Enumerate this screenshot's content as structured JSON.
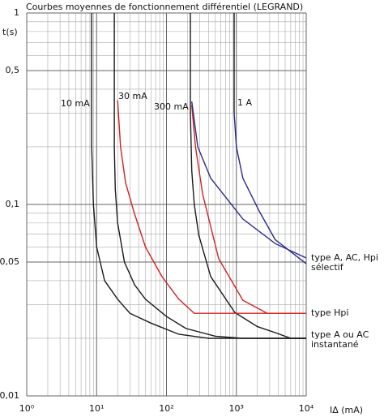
{
  "chart_data": {
    "type": "line",
    "title": "Courbes moyennes de fonctionnement différentiel (LEGRAND)",
    "y_label": "t(s)",
    "x_label": "IΔ (mA)",
    "log_x": true,
    "log_y": true,
    "grid": "minor",
    "xlim": [
      1,
      10000
    ],
    "ylim": [
      0.01,
      1
    ],
    "xticks": [
      {
        "value": 1,
        "label": "10⁰"
      },
      {
        "value": 10,
        "label": "10¹"
      },
      {
        "value": 100,
        "label": "10²"
      },
      {
        "value": 1000,
        "label": "10³"
      },
      {
        "value": 10000,
        "label": "10⁴"
      }
    ],
    "yticks": [
      {
        "value": 0.01,
        "label": "0,01"
      },
      {
        "value": 0.05,
        "label": "0,05"
      },
      {
        "value": 0.1,
        "label": "0,1"
      },
      {
        "value": 0.5,
        "label": "0,5"
      },
      {
        "value": 1,
        "label": "1"
      }
    ],
    "series": [
      {
        "name": "10 mA",
        "color": "#1a1a1a",
        "x": [
          8.5,
          8.5,
          9,
          10,
          13,
          20,
          30,
          60,
          150,
          400,
          10000
        ],
        "values": [
          1,
          0.2,
          0.1,
          0.06,
          0.04,
          0.032,
          0.027,
          0.024,
          0.021,
          0.02,
          0.02
        ]
      },
      {
        "name": "30 mA",
        "color": "#1a1a1a",
        "x": [
          17.9,
          17.9,
          18.5,
          20,
          25,
          35,
          50,
          100,
          190,
          500,
          1200,
          10000
        ],
        "values": [
          1,
          0.2,
          0.12,
          0.08,
          0.05,
          0.038,
          0.032,
          0.026,
          0.0225,
          0.0205,
          0.02,
          0.02
        ]
      },
      {
        "name": "300 mA",
        "color": "#1a1a1a",
        "x": [
          220,
          220,
          230,
          250,
          290,
          430,
          950,
          2000,
          3600,
          6000,
          10000
        ],
        "values": [
          1,
          0.3,
          0.15,
          0.1,
          0.069,
          0.042,
          0.0273,
          0.023,
          0.0214,
          0.02,
          0.02
        ]
      },
      {
        "name": "1 A",
        "color": "#1a1a1a",
        "x": [
          930,
          930
        ],
        "values": [
          1,
          0.3
        ]
      },
      {
        "color": "#d42020",
        "x": [
          20,
          22,
          26,
          34,
          50,
          86,
          150,
          250,
          10000
        ],
        "values": [
          0.35,
          0.2,
          0.13,
          0.092,
          0.06,
          0.042,
          0.032,
          0.027,
          0.027
        ]
      },
      {
        "color": "#d42020",
        "x": [
          230,
          260,
          330,
          560,
          1240,
          2770,
          10000
        ],
        "values": [
          0.33,
          0.2,
          0.113,
          0.052,
          0.0316,
          0.027,
          0.027
        ]
      },
      {
        "color": "#2a2a8a",
        "x": [
          230,
          280,
          430,
          1240,
          3600,
          10000
        ],
        "values": [
          0.345,
          0.2,
          0.137,
          0.084,
          0.0625,
          0.0525
        ]
      },
      {
        "color": "#2a2a8a",
        "x": [
          930,
          1000,
          1240,
          2130,
          3600,
          10000
        ],
        "values": [
          0.3,
          0.2,
          0.137,
          0.092,
          0.0655,
          0.049
        ]
      }
    ],
    "annotations": [
      [
        "type A, AC, Hpi",
        "sélectif"
      ],
      [
        "type Hpi"
      ],
      [
        "type A ou AC",
        "instantané"
      ]
    ]
  }
}
